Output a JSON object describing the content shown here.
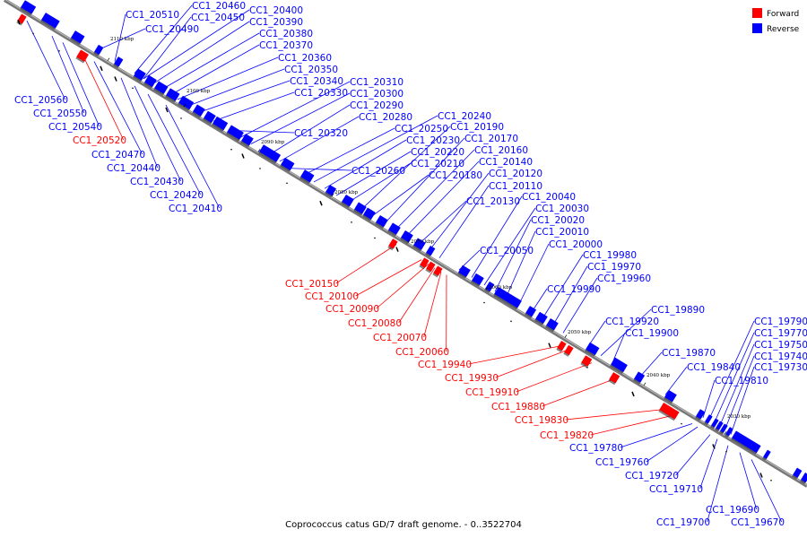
{
  "caption": "Coprococcus catus GD/7 draft genome. - 0..3522704",
  "legend": [
    {
      "label": "Forward",
      "color": "#ff0000"
    },
    {
      "label": "Reverse",
      "color": "#0000ff"
    }
  ],
  "colors": {
    "forward": "#ff0000",
    "reverse": "#0000ff",
    "backbone": "#777777"
  },
  "ticks": [
    "2110 kbp",
    "2100 kbp",
    "2090 kbp",
    "2080 kbp",
    "2070 kbp",
    "2060 kbp",
    "2050 kbp",
    "2040 kbp",
    "2030 kbp"
  ],
  "genes": [
    "CC1_20560",
    "CC1_20550",
    "CC1_20540",
    "CC1_20520",
    "CC1_20510",
    "CC1_20490",
    "CC1_20470",
    "CC1_20460",
    "CC1_20450",
    "CC1_20440",
    "CC1_20430",
    "CC1_20420",
    "CC1_20410",
    "CC1_20400",
    "CC1_20390",
    "CC1_20380",
    "CC1_20370",
    "CC1_20360",
    "CC1_20350",
    "CC1_20340",
    "CC1_20330",
    "CC1_20320",
    "CC1_20310",
    "CC1_20300",
    "CC1_20290",
    "CC1_20280",
    "CC1_20260",
    "CC1_20250",
    "CC1_20240",
    "CC1_20230",
    "CC1_20220",
    "CC1_20210",
    "CC1_20190",
    "CC1_20180",
    "CC1_20170",
    "CC1_20160",
    "CC1_20150",
    "CC1_20140",
    "CC1_20130",
    "CC1_20120",
    "CC1_20110",
    "CC1_20100",
    "CC1_20090",
    "CC1_20080",
    "CC1_20070",
    "CC1_20060",
    "CC1_20050",
    "CC1_20040",
    "CC1_20030",
    "CC1_20020",
    "CC1_20010",
    "CC1_20000",
    "CC1_19990",
    "CC1_19980",
    "CC1_19970",
    "CC1_19960",
    "CC1_19940",
    "CC1_19930",
    "CC1_19920",
    "CC1_19910",
    "CC1_19900",
    "CC1_19890",
    "CC1_19880",
    "CC1_19870",
    "CC1_19840",
    "CC1_19830",
    "CC1_19820",
    "CC1_19810",
    "CC1_19790",
    "CC1_19780",
    "CC1_19770",
    "CC1_19760",
    "CC1_19750",
    "CC1_19740",
    "CC1_19730",
    "CC1_19720",
    "CC1_19710",
    "CC1_19700",
    "CC1_19690",
    "CC1_19670"
  ]
}
